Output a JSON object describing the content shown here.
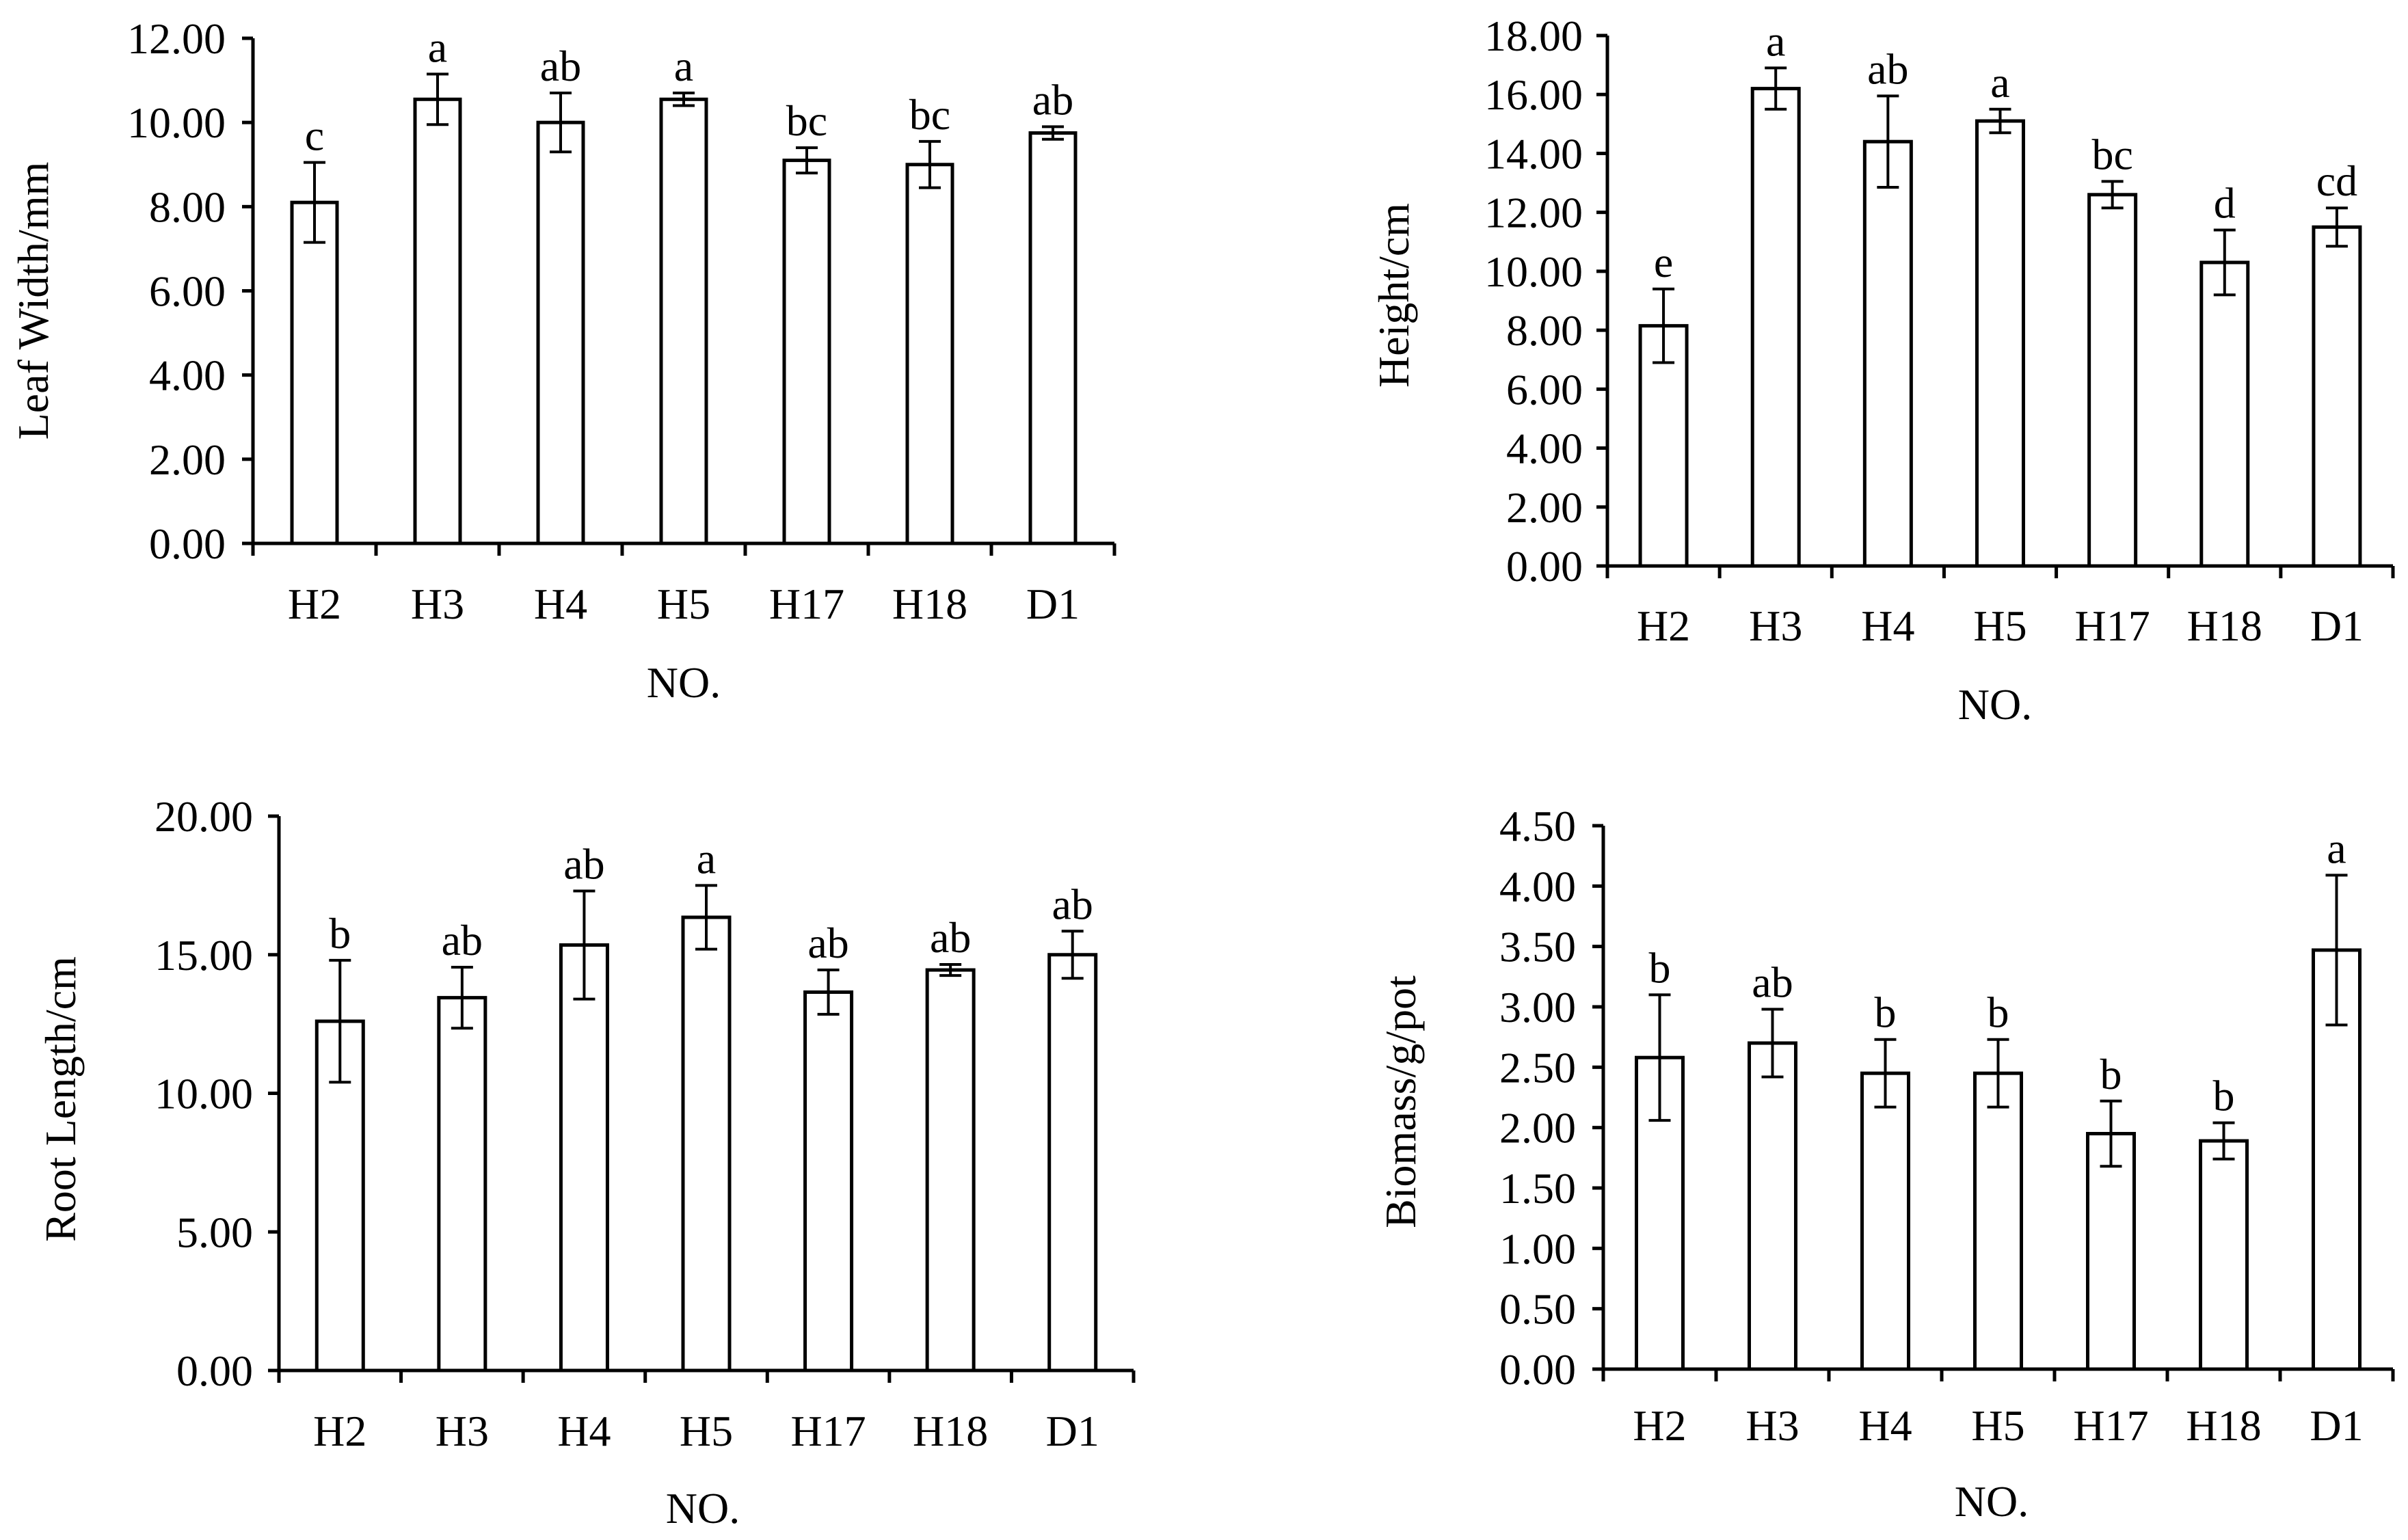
{
  "chart_data": [
    {
      "type": "bar",
      "title": "",
      "xlabel": "NO.",
      "ylabel": "Leaf  Width/mm",
      "ylim": [
        0,
        12
      ],
      "ytick_step": 2,
      "ytick_labels": [
        "0.00",
        "2.00",
        "4.00",
        "6.00",
        "8.00",
        "10.00",
        "12.00"
      ],
      "categories": [
        "H2",
        "H3",
        "H4",
        "H5",
        "H17",
        "H18",
        "D1"
      ],
      "values": [
        8.1,
        10.55,
        10.0,
        10.55,
        9.1,
        9.0,
        9.75
      ],
      "errors": [
        0.95,
        0.6,
        0.7,
        0.15,
        0.3,
        0.55,
        0.15
      ],
      "significance": [
        "c",
        "a",
        "ab",
        "a",
        "bc",
        "bc",
        "ab"
      ]
    },
    {
      "type": "bar",
      "title": "",
      "xlabel": "NO.",
      "ylabel": "Height/cm",
      "ylim": [
        0,
        18
      ],
      "ytick_step": 2,
      "ytick_labels": [
        "0.00",
        "2.00",
        "4.00",
        "6.00",
        "8.00",
        "10.00",
        "12.00",
        "14.00",
        "16.00",
        "18.00"
      ],
      "categories": [
        "H2",
        "H3",
        "H4",
        "H5",
        "H17",
        "H18",
        "D1"
      ],
      "values": [
        8.15,
        16.2,
        14.4,
        15.1,
        12.6,
        10.3,
        11.5
      ],
      "errors": [
        1.25,
        0.7,
        1.55,
        0.4,
        0.45,
        1.1,
        0.65
      ],
      "significance": [
        "e",
        "a",
        "ab",
        "a",
        "bc",
        "d",
        "cd"
      ]
    },
    {
      "type": "bar",
      "title": "",
      "xlabel": "NO.",
      "ylabel": "Root Length/cm",
      "ylim": [
        0,
        20
      ],
      "ytick_step": 5,
      "ytick_labels": [
        "0.00",
        "5.00",
        "10.00",
        "15.00",
        "20.00"
      ],
      "categories": [
        "H2",
        "H3",
        "H4",
        "H5",
        "H17",
        "H18",
        "D1"
      ],
      "values": [
        12.6,
        13.45,
        15.35,
        16.35,
        13.65,
        14.45,
        15.0
      ],
      "errors": [
        2.2,
        1.1,
        1.95,
        1.15,
        0.8,
        0.2,
        0.85
      ],
      "significance": [
        "b",
        "ab",
        "ab",
        "a",
        "ab",
        "ab",
        "ab"
      ]
    },
    {
      "type": "bar",
      "title": "",
      "xlabel": "NO.",
      "ylabel": "Biomass/g/pot",
      "ylim": [
        0,
        4.5
      ],
      "ytick_step": 0.5,
      "ytick_labels": [
        "0.00",
        "0.50",
        "1.00",
        "1.50",
        "2.00",
        "2.50",
        "3.00",
        "3.50",
        "4.00",
        "4.50"
      ],
      "categories": [
        "H2",
        "H3",
        "H4",
        "H5",
        "H17",
        "H18",
        "D1"
      ],
      "values": [
        2.58,
        2.7,
        2.45,
        2.45,
        1.95,
        1.89,
        3.47
      ],
      "errors": [
        0.52,
        0.28,
        0.28,
        0.28,
        0.27,
        0.15,
        0.62
      ],
      "significance": [
        "b",
        "ab",
        "b",
        "b",
        "b",
        "b",
        "a"
      ]
    }
  ]
}
